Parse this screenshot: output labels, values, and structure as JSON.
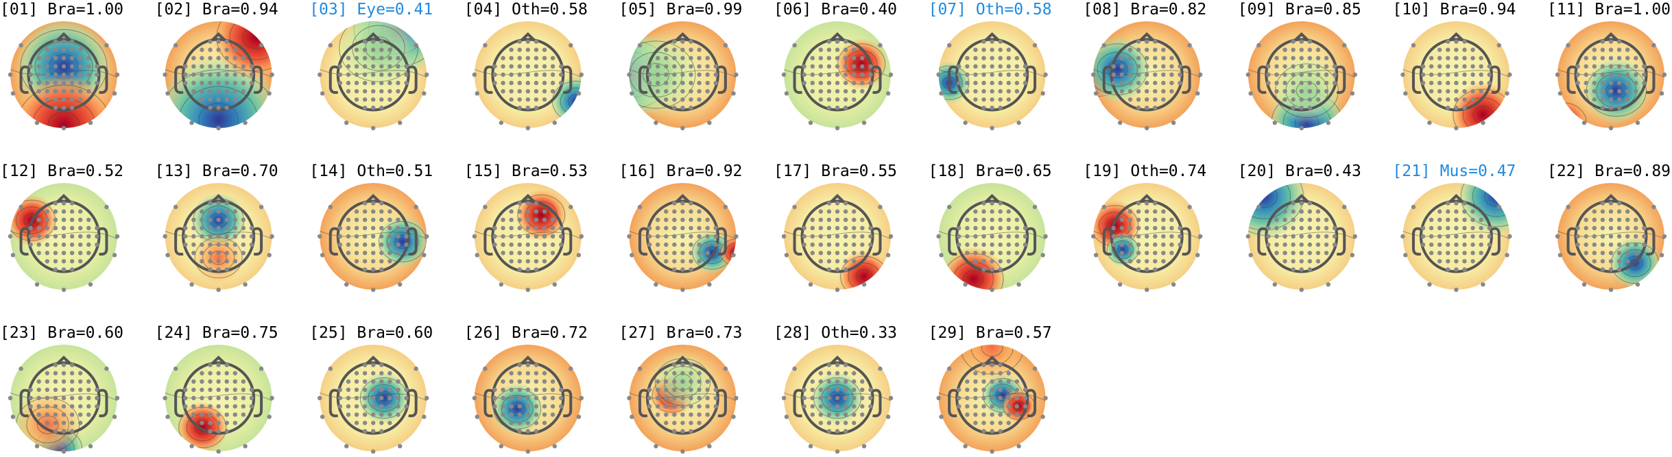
{
  "components": [
    {
      "label": "[01] Bra=1.00",
      "highlighted": false
    },
    {
      "label": "[02] Bra=0.94",
      "highlighted": false
    },
    {
      "label": "[03] Eye=0.41",
      "highlighted": true
    },
    {
      "label": "[04] Oth=0.58",
      "highlighted": false
    },
    {
      "label": "[05] Bra=0.99",
      "highlighted": false
    },
    {
      "label": "[06] Bra=0.40",
      "highlighted": false
    },
    {
      "label": "[07] Oth=0.58",
      "highlighted": true
    },
    {
      "label": "[08] Bra=0.82",
      "highlighted": false
    },
    {
      "label": "[09] Bra=0.85",
      "highlighted": false
    },
    {
      "label": "[10] Bra=0.94",
      "highlighted": false
    },
    {
      "label": "[11] Bra=1.00",
      "highlighted": false
    },
    {
      "label": "[12] Bra=0.52",
      "highlighted": false
    },
    {
      "label": "[13] Bra=0.70",
      "highlighted": false
    },
    {
      "label": "[14] Oth=0.51",
      "highlighted": false
    },
    {
      "label": "[15] Bra=0.53",
      "highlighted": false
    },
    {
      "label": "[16] Bra=0.92",
      "highlighted": false
    },
    {
      "label": "[17] Bra=0.55",
      "highlighted": false
    },
    {
      "label": "[18] Bra=0.65",
      "highlighted": false
    },
    {
      "label": "[19] Oth=0.74",
      "highlighted": false
    },
    {
      "label": "[20] Bra=0.43",
      "highlighted": false
    },
    {
      "label": "[21] Mus=0.47",
      "highlighted": true
    },
    {
      "label": "[22] Bra=0.89",
      "highlighted": false
    },
    {
      "label": "[23] Bra=0.60",
      "highlighted": false
    },
    {
      "label": "[24] Bra=0.75",
      "highlighted": false
    },
    {
      "label": "[25] Bra=0.60",
      "highlighted": false
    },
    {
      "label": "[26] Bra=0.72",
      "highlighted": false
    },
    {
      "label": "[27] Bra=0.73",
      "highlighted": false
    },
    {
      "label": "[28] Oth=0.33",
      "highlighted": false
    },
    {
      "label": "[29] Bra=0.57",
      "highlighted": false
    }
  ]
}
